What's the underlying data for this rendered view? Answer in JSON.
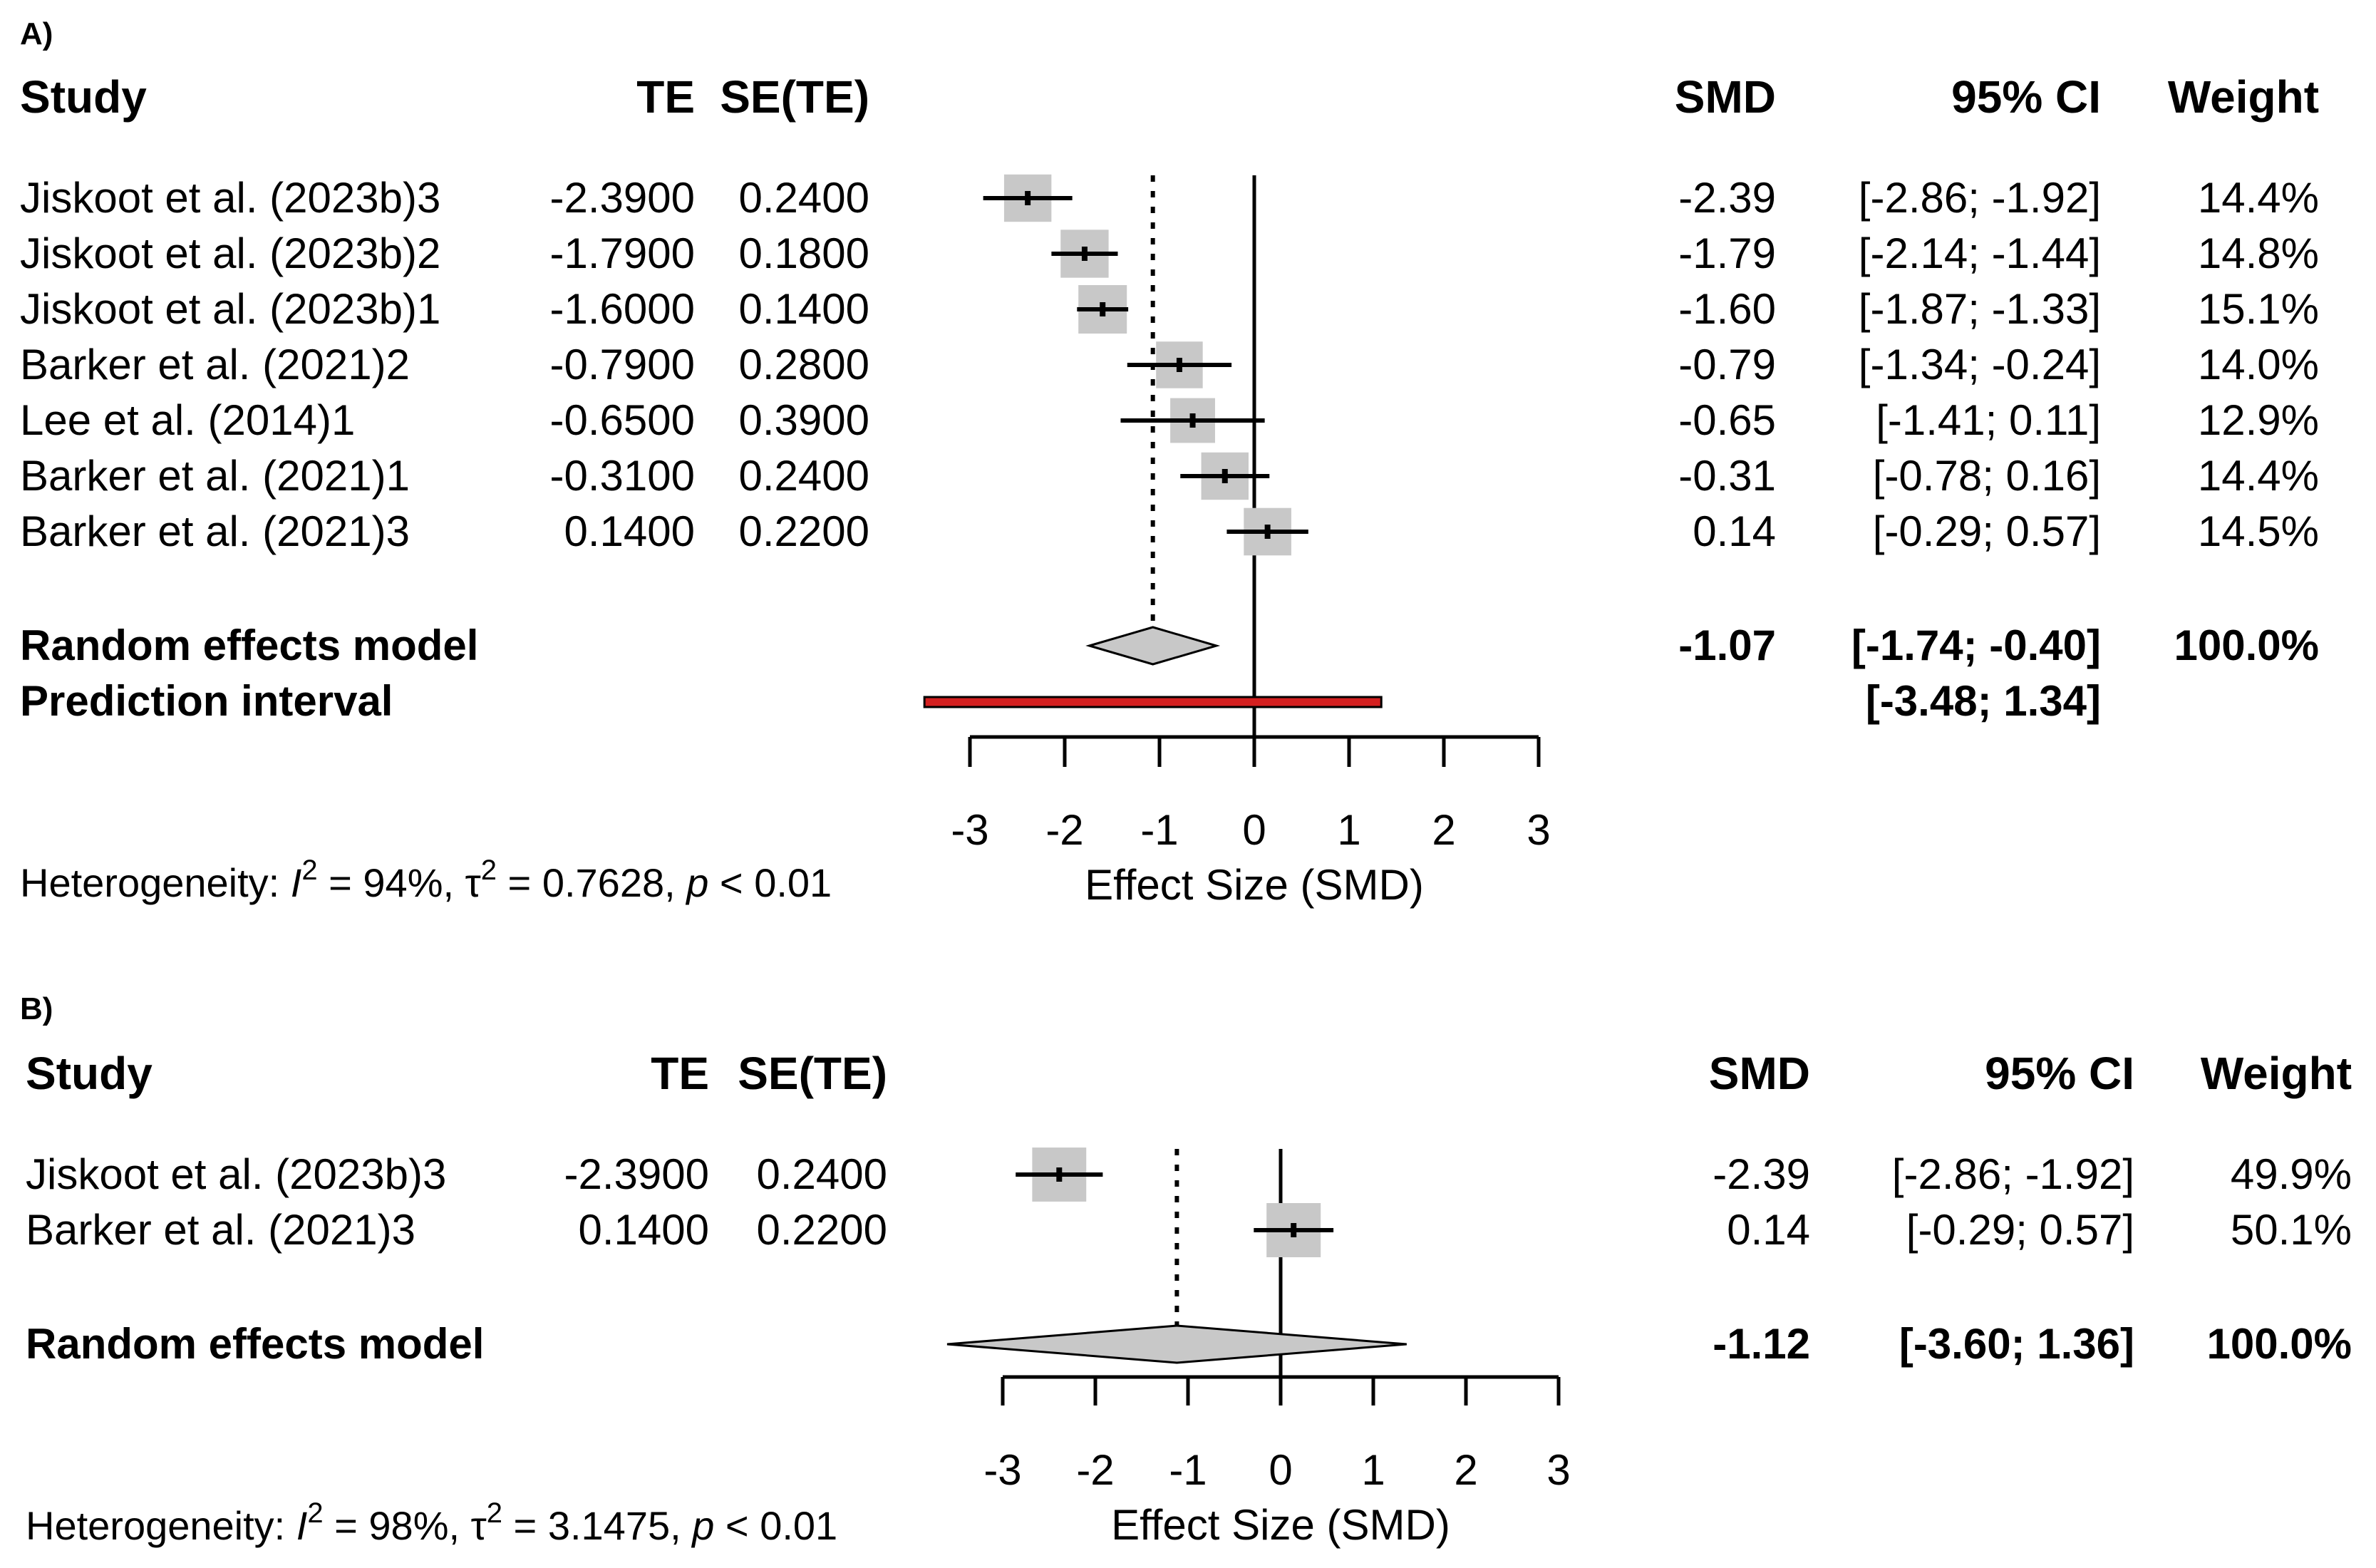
{
  "chart_data": [
    {
      "type": "forest",
      "panel_label": "A)",
      "headers": {
        "study": "Study",
        "te": "TE",
        "sete": "SE(TE)",
        "smd": "SMD",
        "ci": "95% CI",
        "weight": "Weight"
      },
      "studies": [
        {
          "study": "Jiskoot et al. (2023b)3",
          "te": "-2.3900",
          "sete": "0.2400",
          "smd_label": "-2.39",
          "ci_label": "[-2.86; -1.92]",
          "weight_label": "14.4%",
          "est": -2.39,
          "lo": -2.86,
          "hi": -1.92,
          "weight": 14.4
        },
        {
          "study": "Jiskoot et al. (2023b)2",
          "te": "-1.7900",
          "sete": "0.1800",
          "smd_label": "-1.79",
          "ci_label": "[-2.14; -1.44]",
          "weight_label": "14.8%",
          "est": -1.79,
          "lo": -2.14,
          "hi": -1.44,
          "weight": 14.8
        },
        {
          "study": "Jiskoot et al. (2023b)1",
          "te": "-1.6000",
          "sete": "0.1400",
          "smd_label": "-1.60",
          "ci_label": "[-1.87; -1.33]",
          "weight_label": "15.1%",
          "est": -1.6,
          "lo": -1.87,
          "hi": -1.33,
          "weight": 15.1
        },
        {
          "study": "Barker et al. (2021)2",
          "te": "-0.7900",
          "sete": "0.2800",
          "smd_label": "-0.79",
          "ci_label": "[-1.34; -0.24]",
          "weight_label": "14.0%",
          "est": -0.79,
          "lo": -1.34,
          "hi": -0.24,
          "weight": 14.0
        },
        {
          "study": "Lee et al. (2014)1",
          "te": "-0.6500",
          "sete": "0.3900",
          "smd_label": "-0.65",
          "ci_label": "[-1.41;  0.11]",
          "weight_label": "12.9%",
          "est": -0.65,
          "lo": -1.41,
          "hi": 0.11,
          "weight": 12.9
        },
        {
          "study": "Barker et al. (2021)1",
          "te": "-0.3100",
          "sete": "0.2400",
          "smd_label": "-0.31",
          "ci_label": "[-0.78;  0.16]",
          "weight_label": "14.4%",
          "est": -0.31,
          "lo": -0.78,
          "hi": 0.16,
          "weight": 14.4
        },
        {
          "study": "Barker et al. (2021)3",
          "te": "0.1400",
          "sete": "0.2200",
          "smd_label": "0.14",
          "ci_label": "[-0.29;  0.57]",
          "weight_label": "14.5%",
          "est": 0.14,
          "lo": -0.29,
          "hi": 0.57,
          "weight": 14.5
        }
      ],
      "pooled": {
        "label": "Random effects model",
        "smd_label": "-1.07",
        "ci_label": "[-1.74; -0.40]",
        "weight_label": "100.0%",
        "est": -1.07,
        "lo": -1.74,
        "hi": -0.4
      },
      "prediction": {
        "label": "Prediction interval",
        "ci_label": "[-3.48;  1.34]",
        "lo": -3.48,
        "hi": 1.34
      },
      "heterogeneity": {
        "prefix": "Heterogeneity: ",
        "i2_label": "I",
        "i2_sup": "2",
        "i2_value": " = 94%, ",
        "tau_label": "τ",
        "tau_sup": "2",
        "tau_value": " = 0.7628, ",
        "p_label": "p",
        "p_value": " < 0.01"
      },
      "x_label": "Effect Size (SMD)",
      "x_ticks": [
        -3,
        -2,
        -1,
        0,
        1,
        2,
        3
      ],
      "xlim": [
        -3,
        3
      ]
    },
    {
      "type": "forest",
      "panel_label": "B)",
      "headers": {
        "study": "Study",
        "te": "TE",
        "sete": "SE(TE)",
        "smd": "SMD",
        "ci": "95% CI",
        "weight": "Weight"
      },
      "studies": [
        {
          "study": "Jiskoot et al. (2023b)3",
          "te": "-2.3900",
          "sete": "0.2400",
          "smd_label": "-2.39",
          "ci_label": "[-2.86; -1.92]",
          "weight_label": "49.9%",
          "est": -2.39,
          "lo": -2.86,
          "hi": -1.92,
          "weight": 49.9
        },
        {
          "study": "Barker et al. (2021)3",
          "te": "0.1400",
          "sete": "0.2200",
          "smd_label": "0.14",
          "ci_label": "[-0.29;  0.57]",
          "weight_label": "50.1%",
          "est": 0.14,
          "lo": -0.29,
          "hi": 0.57,
          "weight": 50.1
        }
      ],
      "pooled": {
        "label": "Random effects model",
        "smd_label": "-1.12",
        "ci_label": "[-3.60;  1.36]",
        "weight_label": "100.0%",
        "est": -1.12,
        "lo": -3.6,
        "hi": 1.36
      },
      "heterogeneity": {
        "prefix": "Heterogeneity: ",
        "i2_label": "I",
        "i2_sup": "2",
        "i2_value": " = 98%, ",
        "tau_label": "τ",
        "tau_sup": "2",
        "tau_value": " = 3.1475, ",
        "p_label": "p",
        "p_value": " < 0.01"
      },
      "x_label": "Effect Size (SMD)",
      "x_ticks": [
        -3,
        -2,
        -1,
        0,
        1,
        2,
        3
      ],
      "xlim": [
        -3,
        3
      ]
    }
  ],
  "colors": {
    "square": "#c8c8c8",
    "diamond": "#c8c8c8",
    "prediction": "#d42020",
    "line": "#000000"
  }
}
